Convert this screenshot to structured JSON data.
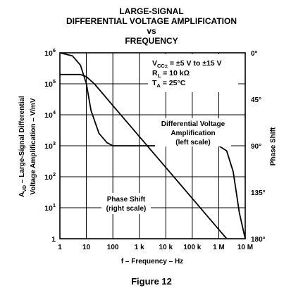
{
  "titles": {
    "line1": "LARGE-SIGNAL",
    "line2": "DIFFERENTIAL VOLTAGE AMPLIFICATION",
    "line3": "vs",
    "line4": "FREQUENCY"
  },
  "figure_caption": "Figure 12",
  "chart_data": {
    "type": "line",
    "title": "LARGE-SIGNAL DIFFERENTIAL VOLTAGE AMPLIFICATION vs FREQUENCY",
    "xlabel": "f – Frequency – Hz",
    "ylabel_line1": "A",
    "ylabel_sub": "VD",
    "ylabel_rest1": " – Large-Signal Differential",
    "ylabel_line2": "Voltage Amplification – V/mV",
    "y2label": "Phase Shift",
    "x_scale": "log",
    "xlim": [
      1,
      10000000
    ],
    "y_scale": "log",
    "ylim": [
      1,
      1000000
    ],
    "y2lim": [
      0,
      180
    ],
    "grid": true,
    "x_ticks": [
      {
        "value": 1,
        "label": "1"
      },
      {
        "value": 10,
        "label": "10"
      },
      {
        "value": 100,
        "label": "100"
      },
      {
        "value": 1000,
        "label": "1 k"
      },
      {
        "value": 10000,
        "label": "10 k"
      },
      {
        "value": 100000,
        "label": "100 k"
      },
      {
        "value": 1000000,
        "label": "1 M"
      },
      {
        "value": 10000000,
        "label": "10 M"
      }
    ],
    "y_ticks": [
      {
        "value": 1,
        "base": "1",
        "exp": ""
      },
      {
        "value": 10,
        "base": "10",
        "exp": "1"
      },
      {
        "value": 100,
        "base": "10",
        "exp": "2"
      },
      {
        "value": 1000,
        "base": "10",
        "exp": "3"
      },
      {
        "value": 10000,
        "base": "10",
        "exp": "4"
      },
      {
        "value": 100000,
        "base": "10",
        "exp": "5"
      },
      {
        "value": 1000000,
        "base": "10",
        "exp": "6"
      }
    ],
    "y2_ticks": [
      {
        "value": 0,
        "label": "0°"
      },
      {
        "value": 45,
        "label": "45°"
      },
      {
        "value": 90,
        "label": "90°"
      },
      {
        "value": 135,
        "label": "135°"
      },
      {
        "value": 180,
        "label": "180°"
      }
    ],
    "series": [
      {
        "axis": "left",
        "points": [
          [
            1,
            200000
          ],
          [
            6,
            200000
          ],
          [
            10,
            170000
          ],
          [
            20,
            100000
          ],
          [
            100,
            20000
          ],
          [
            1000,
            2000
          ],
          [
            10000,
            200
          ],
          [
            100000,
            20
          ],
          [
            1000000,
            2
          ],
          [
            2000000,
            1
          ]
        ]
      },
      {
        "axis": "right",
        "points": [
          [
            1,
            0
          ],
          [
            3,
            3
          ],
          [
            6,
            12
          ],
          [
            10,
            30
          ],
          [
            15,
            56
          ],
          [
            30,
            78
          ],
          [
            60,
            87
          ],
          [
            100,
            90
          ],
          [
            1000,
            90
          ],
          [
            100000,
            90
          ],
          [
            1000000,
            90
          ],
          [
            2000000,
            95
          ],
          [
            3500000,
            115
          ],
          [
            6000000,
            155
          ],
          [
            10000000,
            180
          ]
        ]
      }
    ],
    "annotations": {
      "conditions": [
        {
          "main": "V",
          "sub": "CC±",
          "rest": " = ±5 V to ±15 V"
        },
        {
          "main": "R",
          "sub": "L",
          "rest": " = 10 kΩ"
        },
        {
          "main": "T",
          "sub": "A",
          "rest": " = 25°C"
        }
      ],
      "dva_label": [
        "Differential Voltage",
        "Amplification",
        "(left scale)"
      ],
      "phase_label": [
        "Phase Shift",
        "(right scale)"
      ]
    }
  }
}
